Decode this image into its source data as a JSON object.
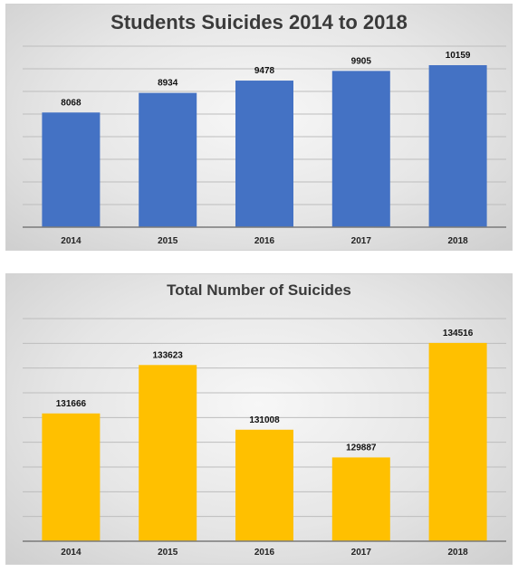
{
  "chart_data": [
    {
      "type": "bar",
      "title": "Students Suicides 2014 to 2018",
      "categories": [
        "2014",
        "2015",
        "2016",
        "2017",
        "2018"
      ],
      "values": [
        8068,
        8934,
        9478,
        9905,
        10159
      ],
      "data_labels": [
        "8068",
        "8934",
        "9478",
        "9905",
        "10159"
      ],
      "xlabel": "",
      "ylabel": "",
      "ylim": [
        3000,
        11000
      ],
      "grid_lines": 8,
      "grid": true,
      "legend": "none",
      "bar_color": "#4472c4"
    },
    {
      "type": "bar",
      "title": "Total Number of Suicides",
      "categories": [
        "2014",
        "2015",
        "2016",
        "2017",
        "2018"
      ],
      "values": [
        131666,
        133623,
        131008,
        129887,
        134516
      ],
      "data_labels": [
        "131666",
        "133623",
        "131008",
        "129887",
        "134516"
      ],
      "xlabel": "",
      "ylabel": "",
      "ylim": [
        126500,
        135500
      ],
      "grid_lines": 9,
      "grid": true,
      "legend": "none",
      "bar_color": "#ffc000"
    }
  ]
}
